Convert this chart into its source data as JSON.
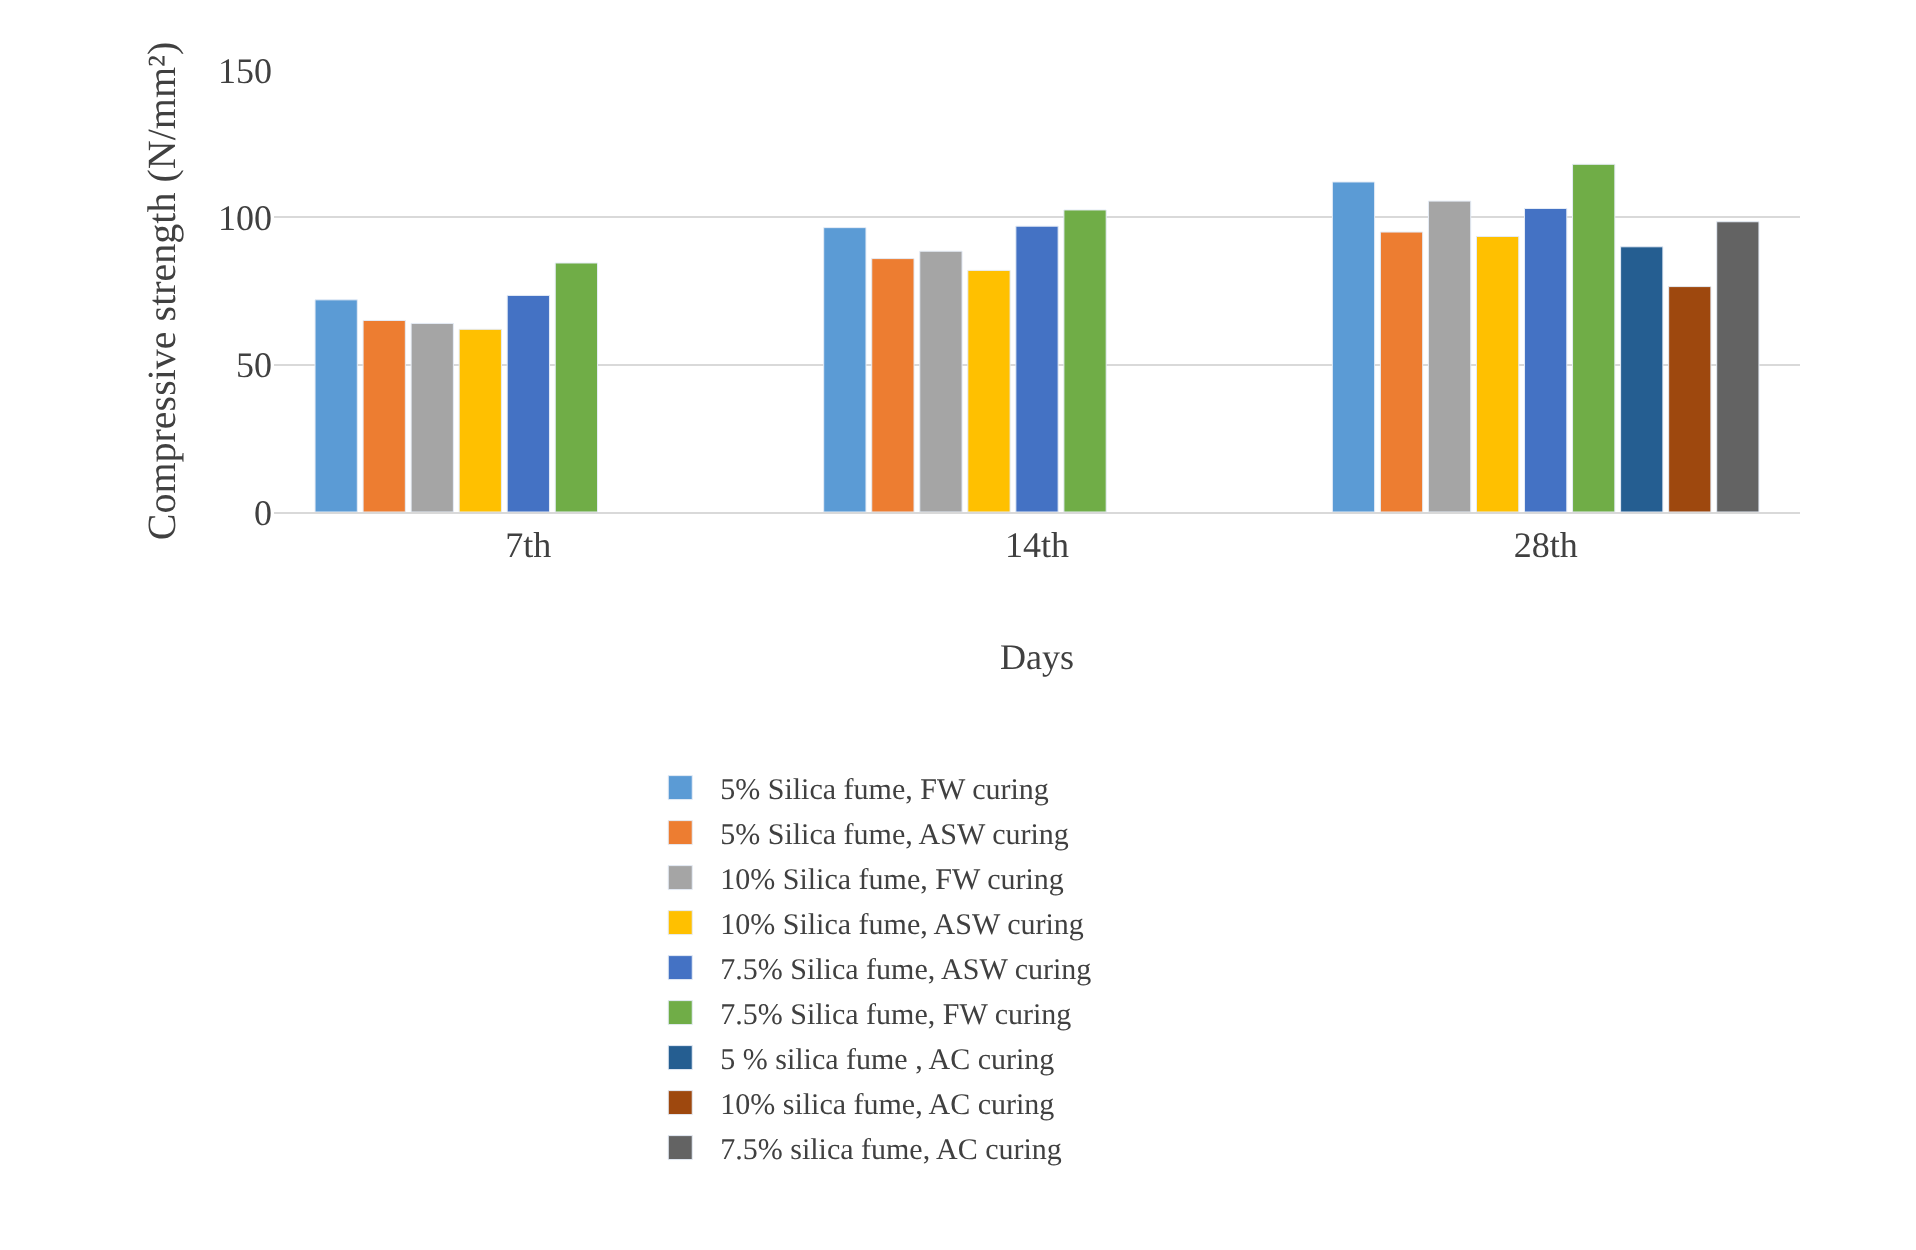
{
  "chart_data": {
    "type": "bar",
    "xlabel": "Days",
    "ylabel": "Compressive strength (N/mm²)",
    "categories": [
      "7th",
      "14th",
      "28th"
    ],
    "ylim": [
      0,
      150
    ],
    "yticks": [
      0,
      50,
      100,
      150
    ],
    "grid": "y",
    "legend": "bottom",
    "series": [
      {
        "name": "5% Silica fume, FW curing",
        "color": "#5b9bd5",
        "values": [
          72,
          96.5,
          112
        ]
      },
      {
        "name": "5% Silica fume, ASW curing",
        "color": "#ed7d31",
        "values": [
          65,
          86,
          95
        ]
      },
      {
        "name": "10% Silica fume, FW curing",
        "color": "#a5a5a5",
        "values": [
          64,
          88.5,
          105.5
        ]
      },
      {
        "name": "10% Silica fume, ASW curing",
        "color": "#ffc000",
        "values": [
          62,
          82,
          93.5
        ]
      },
      {
        "name": "7.5% Silica fume, ASW curing",
        "color": "#4472c4",
        "values": [
          73.5,
          97,
          103
        ]
      },
      {
        "name": "7.5% Silica fume, FW curing",
        "color": "#70ad47",
        "values": [
          84.5,
          102.5,
          118
        ]
      },
      {
        "name": "5 % silica fume , AC curing",
        "color": "#255e91",
        "values": [
          null,
          null,
          90
        ]
      },
      {
        "name": "10% silica fume, AC curing",
        "color": "#9e480e",
        "values": [
          null,
          null,
          76.5
        ]
      },
      {
        "name": "7.5% silica fume, AC curing",
        "color": "#636363",
        "values": [
          null,
          null,
          98.5
        ]
      }
    ]
  }
}
